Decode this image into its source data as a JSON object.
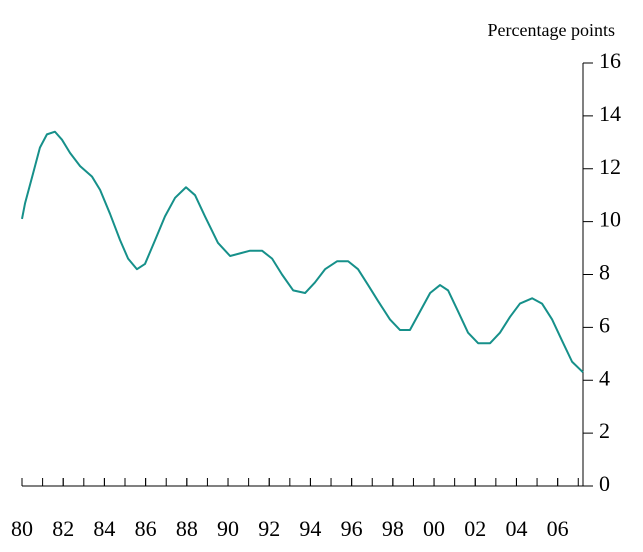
{
  "chart_data": {
    "type": "line",
    "y_axis_label": "Percentage points",
    "x": [
      1980.0,
      1980.15,
      1980.53,
      1980.87,
      1981.21,
      1981.6,
      1981.94,
      1982.33,
      1982.82,
      1983.4,
      1983.79,
      1984.27,
      1984.76,
      1985.15,
      1985.58,
      1985.97,
      1986.46,
      1986.94,
      1987.43,
      1987.96,
      1988.4,
      1988.88,
      1989.51,
      1990.1,
      1990.58,
      1991.07,
      1991.65,
      1992.14,
      1992.62,
      1993.16,
      1993.74,
      1994.22,
      1994.71,
      1995.29,
      1995.83,
      1996.31,
      1996.8,
      1997.28,
      1997.86,
      1998.35,
      1998.83,
      1999.32,
      1999.81,
      2000.29,
      2000.68,
      2001.17,
      2001.65,
      2002.14,
      2002.72,
      2003.2,
      2003.69,
      2004.17,
      2004.76,
      2005.24,
      2005.73,
      2006.21,
      2006.7,
      2007.23
    ],
    "series": [
      {
        "color": "#16908a",
        "values": [
          10.1,
          10.7,
          11.8,
          12.8,
          13.3,
          13.4,
          13.1,
          12.6,
          12.1,
          11.7,
          11.2,
          10.3,
          9.3,
          8.6,
          8.2,
          8.4,
          9.3,
          10.2,
          10.9,
          11.3,
          11.0,
          10.2,
          9.2,
          8.7,
          8.8,
          8.9,
          8.9,
          8.6,
          8.0,
          7.4,
          7.3,
          7.7,
          8.2,
          8.5,
          8.5,
          8.2,
          7.6,
          7.0,
          6.3,
          5.9,
          5.9,
          6.6,
          7.3,
          7.6,
          7.4,
          6.6,
          5.8,
          5.4,
          5.4,
          5.8,
          6.4,
          6.9,
          7.1,
          6.9,
          6.3,
          5.5,
          4.7,
          4.3
        ]
      }
    ],
    "xlim": [
      1980,
      2007.23
    ],
    "xticks": [
      {
        "value": 1980,
        "label": "80"
      },
      {
        "value": 1982,
        "label": "82"
      },
      {
        "value": 1984,
        "label": "84"
      },
      {
        "value": 1986,
        "label": "86"
      },
      {
        "value": 1988,
        "label": "88"
      },
      {
        "value": 1990,
        "label": "90"
      },
      {
        "value": 1992,
        "label": "92"
      },
      {
        "value": 1994,
        "label": "94"
      },
      {
        "value": 1996,
        "label": "96"
      },
      {
        "value": 1998,
        "label": "98"
      },
      {
        "value": 2000,
        "label": "00"
      },
      {
        "value": 2002,
        "label": "02"
      },
      {
        "value": 2004,
        "label": "04"
      },
      {
        "value": 2006,
        "label": "06"
      }
    ],
    "xminorticks": [
      1980,
      1981,
      1982,
      1983,
      1984,
      1985,
      1986,
      1987,
      1988,
      1989,
      1990,
      1991,
      1992,
      1993,
      1994,
      1995,
      1996,
      1997,
      1998,
      1999,
      2000,
      2001,
      2002,
      2003,
      2004,
      2005,
      2006,
      2007
    ],
    "ylim": [
      0,
      16
    ],
    "yticks": [
      0,
      2,
      4,
      6,
      8,
      10,
      12,
      14,
      16
    ],
    "y_axis_side": "right"
  }
}
